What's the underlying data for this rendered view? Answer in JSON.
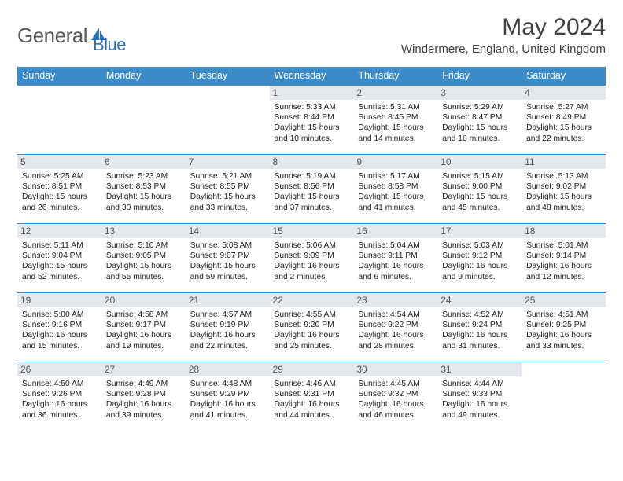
{
  "logo": {
    "part1": "General",
    "part2": "Blue"
  },
  "title": "May 2024",
  "location": "Windermere, England, United Kingdom",
  "columns": [
    "Sunday",
    "Monday",
    "Tuesday",
    "Wednesday",
    "Thursday",
    "Friday",
    "Saturday"
  ],
  "colors": {
    "header_bg": "#3b8bc9",
    "header_fg": "#ffffff",
    "daynum_bg": "#e4e8ec",
    "rule": "#3b8bc9",
    "logo_gray": "#5a5a5a",
    "logo_blue": "#2d6fb5"
  },
  "leading_blanks": 3,
  "days": [
    {
      "n": "1",
      "sr": "5:33 AM",
      "ss": "8:44 PM",
      "dl": "15 hours and 10 minutes."
    },
    {
      "n": "2",
      "sr": "5:31 AM",
      "ss": "8:45 PM",
      "dl": "15 hours and 14 minutes."
    },
    {
      "n": "3",
      "sr": "5:29 AM",
      "ss": "8:47 PM",
      "dl": "15 hours and 18 minutes."
    },
    {
      "n": "4",
      "sr": "5:27 AM",
      "ss": "8:49 PM",
      "dl": "15 hours and 22 minutes."
    },
    {
      "n": "5",
      "sr": "5:25 AM",
      "ss": "8:51 PM",
      "dl": "15 hours and 26 minutes."
    },
    {
      "n": "6",
      "sr": "5:23 AM",
      "ss": "8:53 PM",
      "dl": "15 hours and 30 minutes."
    },
    {
      "n": "7",
      "sr": "5:21 AM",
      "ss": "8:55 PM",
      "dl": "15 hours and 33 minutes."
    },
    {
      "n": "8",
      "sr": "5:19 AM",
      "ss": "8:56 PM",
      "dl": "15 hours and 37 minutes."
    },
    {
      "n": "9",
      "sr": "5:17 AM",
      "ss": "8:58 PM",
      "dl": "15 hours and 41 minutes."
    },
    {
      "n": "10",
      "sr": "5:15 AM",
      "ss": "9:00 PM",
      "dl": "15 hours and 45 minutes."
    },
    {
      "n": "11",
      "sr": "5:13 AM",
      "ss": "9:02 PM",
      "dl": "15 hours and 48 minutes."
    },
    {
      "n": "12",
      "sr": "5:11 AM",
      "ss": "9:04 PM",
      "dl": "15 hours and 52 minutes."
    },
    {
      "n": "13",
      "sr": "5:10 AM",
      "ss": "9:05 PM",
      "dl": "15 hours and 55 minutes."
    },
    {
      "n": "14",
      "sr": "5:08 AM",
      "ss": "9:07 PM",
      "dl": "15 hours and 59 minutes."
    },
    {
      "n": "15",
      "sr": "5:06 AM",
      "ss": "9:09 PM",
      "dl": "16 hours and 2 minutes."
    },
    {
      "n": "16",
      "sr": "5:04 AM",
      "ss": "9:11 PM",
      "dl": "16 hours and 6 minutes."
    },
    {
      "n": "17",
      "sr": "5:03 AM",
      "ss": "9:12 PM",
      "dl": "16 hours and 9 minutes."
    },
    {
      "n": "18",
      "sr": "5:01 AM",
      "ss": "9:14 PM",
      "dl": "16 hours and 12 minutes."
    },
    {
      "n": "19",
      "sr": "5:00 AM",
      "ss": "9:16 PM",
      "dl": "16 hours and 15 minutes."
    },
    {
      "n": "20",
      "sr": "4:58 AM",
      "ss": "9:17 PM",
      "dl": "16 hours and 19 minutes."
    },
    {
      "n": "21",
      "sr": "4:57 AM",
      "ss": "9:19 PM",
      "dl": "16 hours and 22 minutes."
    },
    {
      "n": "22",
      "sr": "4:55 AM",
      "ss": "9:20 PM",
      "dl": "16 hours and 25 minutes."
    },
    {
      "n": "23",
      "sr": "4:54 AM",
      "ss": "9:22 PM",
      "dl": "16 hours and 28 minutes."
    },
    {
      "n": "24",
      "sr": "4:52 AM",
      "ss": "9:24 PM",
      "dl": "16 hours and 31 minutes."
    },
    {
      "n": "25",
      "sr": "4:51 AM",
      "ss": "9:25 PM",
      "dl": "16 hours and 33 minutes."
    },
    {
      "n": "26",
      "sr": "4:50 AM",
      "ss": "9:26 PM",
      "dl": "16 hours and 36 minutes."
    },
    {
      "n": "27",
      "sr": "4:49 AM",
      "ss": "9:28 PM",
      "dl": "16 hours and 39 minutes."
    },
    {
      "n": "28",
      "sr": "4:48 AM",
      "ss": "9:29 PM",
      "dl": "16 hours and 41 minutes."
    },
    {
      "n": "29",
      "sr": "4:46 AM",
      "ss": "9:31 PM",
      "dl": "16 hours and 44 minutes."
    },
    {
      "n": "30",
      "sr": "4:45 AM",
      "ss": "9:32 PM",
      "dl": "16 hours and 46 minutes."
    },
    {
      "n": "31",
      "sr": "4:44 AM",
      "ss": "9:33 PM",
      "dl": "16 hours and 49 minutes."
    }
  ],
  "labels": {
    "sunrise": "Sunrise:",
    "sunset": "Sunset:",
    "daylight": "Daylight:"
  }
}
